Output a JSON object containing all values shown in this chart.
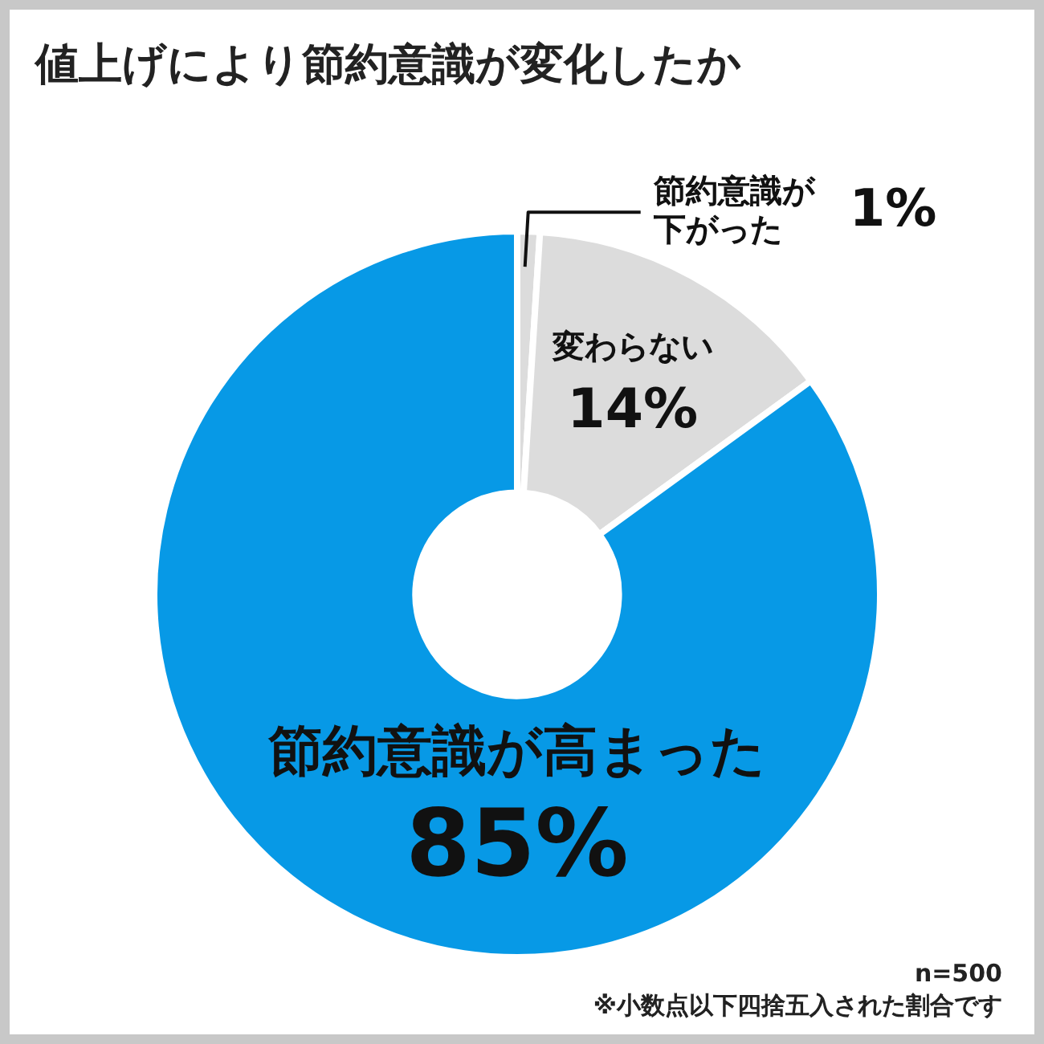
{
  "chart_data": {
    "type": "donut",
    "title": "値上げにより節約意識が変化したか",
    "categories": [
      "節約意識が下がった",
      "変わらない",
      "節約意識が高まった"
    ],
    "values": [
      1,
      14,
      85
    ],
    "value_labels": [
      "1%",
      "14%",
      "85%"
    ],
    "colors": [
      "#dcdcdc",
      "#dcdcdc",
      "#0799e6"
    ],
    "annotations": [
      "n=500",
      "※小数点以下四捨五入された割合です"
    ],
    "legend": false
  }
}
